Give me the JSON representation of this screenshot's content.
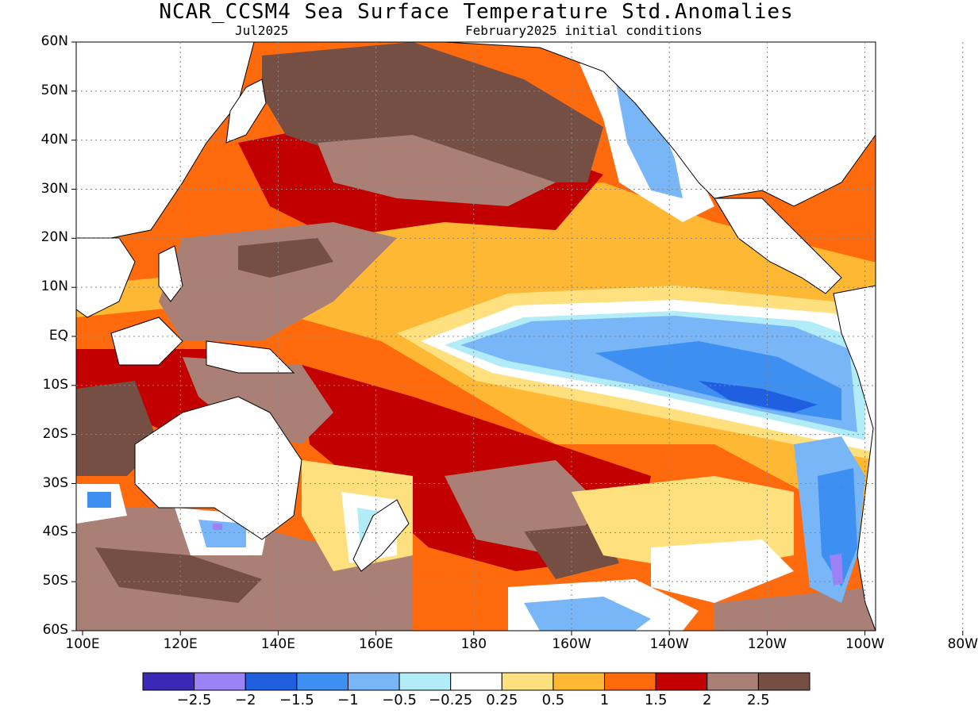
{
  "title": "NCAR_CCSM4 Sea Surface Temperature Std.Anomalies",
  "subtitle_left": "Jul2025",
  "subtitle_right": "February2025 initial conditions",
  "lat_labels": [
    "60N",
    "50N",
    "40N",
    "30N",
    "20N",
    "10N",
    "EQ",
    "10S",
    "20S",
    "30S",
    "40S",
    "50S",
    "60S"
  ],
  "lon_labels": [
    "100E",
    "120E",
    "140E",
    "160E",
    "180",
    "160W",
    "140W",
    "120W",
    "100W",
    "80W"
  ],
  "colorbar": {
    "colors": [
      "#3b28b6",
      "#9c82f4",
      "#1f5fe0",
      "#3d8ff2",
      "#78b6f8",
      "#b1ecf8",
      "#ffffff",
      "#ffe07f",
      "#ffb833",
      "#ff6a0d",
      "#c20000",
      "#a97f76",
      "#764f44"
    ],
    "labels": [
      "−2.5",
      "−2",
      "−1.5",
      "−1",
      "−0.5",
      "−0.25",
      "0.25",
      "0.5",
      "1",
      "1.5",
      "2",
      "2.5"
    ]
  },
  "map_colors": {
    "brown": "#764f44",
    "tan": "#a97f76",
    "red": "#c20000",
    "orange": "#ff6a0d",
    "gold": "#ffb833",
    "yellow": "#ffe07f",
    "white": "#ffffff",
    "cyan": "#b1ecf8",
    "lightblue": "#78b6f8",
    "blue": "#3d8ff2",
    "darkblue": "#1f5fe0",
    "purple": "#9c82f4",
    "land": "#ffffff"
  }
}
